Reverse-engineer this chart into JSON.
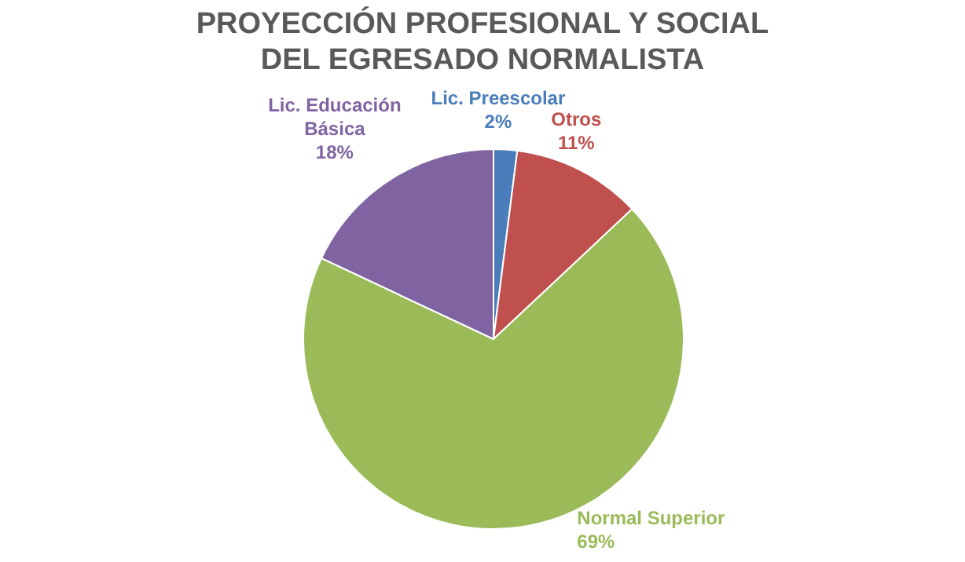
{
  "chart_data": {
    "type": "pie",
    "title": "PROYECCIÓN PROFESIONAL Y SOCIAL\nDEL EGRESADO NORMALISTA",
    "categories": [
      "Lic. Preescolar",
      "Otros",
      "Normal Superior",
      "Lic. Educación Básica"
    ],
    "values": [
      2,
      11,
      69,
      18
    ],
    "value_labels": [
      "2%",
      "11%",
      "69%",
      "18%"
    ],
    "colors": [
      "#4a7ebb",
      "#c0504d",
      "#9bbb59",
      "#8064a2"
    ]
  }
}
